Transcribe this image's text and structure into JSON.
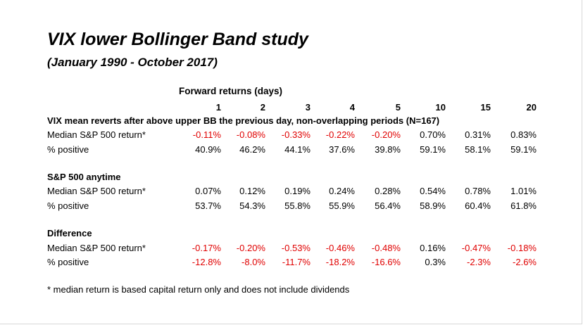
{
  "title": "VIX lower Bollinger Band study",
  "subtitle": "(January 1990 - October 2017)",
  "forward_header": "Forward returns (days)",
  "columns": [
    "1",
    "2",
    "3",
    "4",
    "5",
    "10",
    "15",
    "20"
  ],
  "section1": {
    "title": "VIX mean reverts after above upper BB the previous day, non-overlapping periods (N=167)",
    "rows": [
      {
        "label": "Median S&P 500 return*",
        "values": [
          "-0.11%",
          "-0.08%",
          "-0.33%",
          "-0.22%",
          "-0.20%",
          "0.70%",
          "0.31%",
          "0.83%"
        ]
      },
      {
        "label": "% positive",
        "values": [
          "40.9%",
          "46.2%",
          "44.1%",
          "37.6%",
          "39.8%",
          "59.1%",
          "58.1%",
          "59.1%"
        ]
      }
    ]
  },
  "section2": {
    "title": "S&P 500 anytime",
    "rows": [
      {
        "label": "Median S&P 500 return*",
        "values": [
          "0.07%",
          "0.12%",
          "0.19%",
          "0.24%",
          "0.28%",
          "0.54%",
          "0.78%",
          "1.01%"
        ]
      },
      {
        "label": "% positive",
        "values": [
          "53.7%",
          "54.3%",
          "55.8%",
          "55.9%",
          "56.4%",
          "58.9%",
          "60.4%",
          "61.8%"
        ]
      }
    ]
  },
  "section3": {
    "title": "Difference",
    "rows": [
      {
        "label": "Median S&P 500 return*",
        "values": [
          "-0.17%",
          "-0.20%",
          "-0.53%",
          "-0.46%",
          "-0.48%",
          "0.16%",
          "-0.47%",
          "-0.18%"
        ]
      },
      {
        "label": "% positive",
        "values": [
          "-12.8%",
          "-8.0%",
          "-11.7%",
          "-18.2%",
          "-16.6%",
          "0.3%",
          "-2.3%",
          "-2.6%"
        ]
      }
    ]
  },
  "footnote": "* median return is based capital return only and does not include dividends",
  "colors": {
    "negative": "#e00000",
    "positive": "#000000"
  }
}
